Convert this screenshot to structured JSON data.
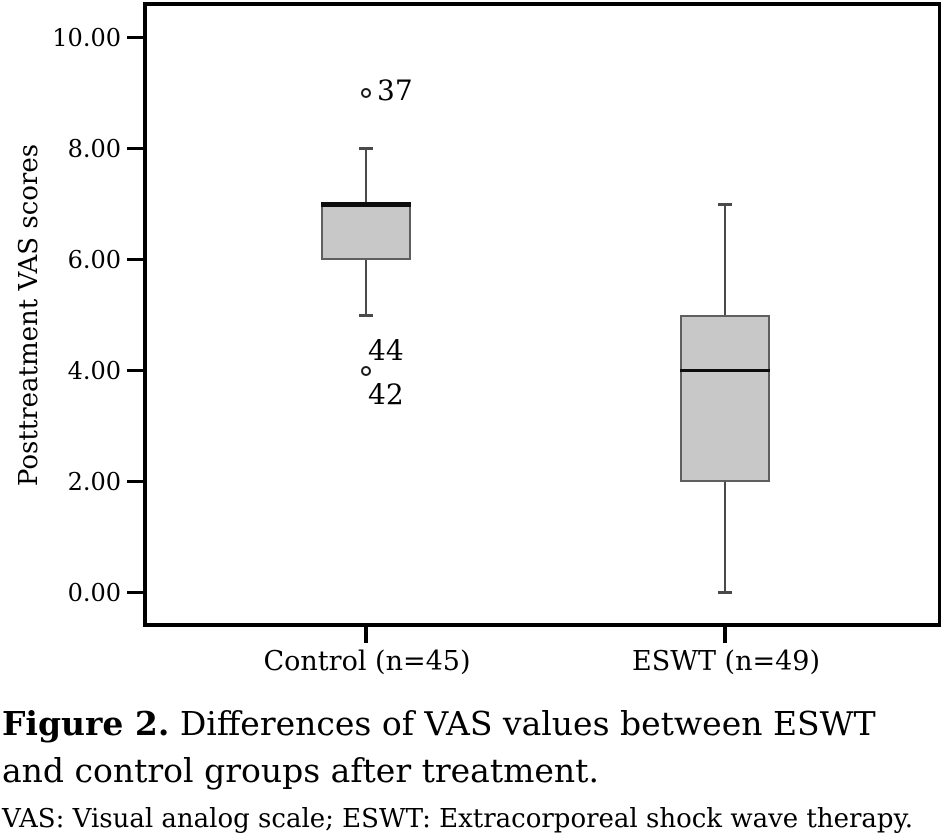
{
  "figure": {
    "caption_prefix": "Figure 2.",
    "caption_text": " Differences of VAS values between ESWT and control groups after treatment.",
    "footnote": "VAS: Visual analog scale; ESWT: Extracorporeal shock wave therapy."
  },
  "chart_data": {
    "type": "boxplot",
    "title": "",
    "xlabel": "",
    "ylabel": "Posttreatment VAS scores",
    "ylim": [
      0,
      10
    ],
    "ytick_labels": [
      "0.00",
      "2.00",
      "4.00",
      "6.00",
      "8.00",
      "10.00"
    ],
    "grid": false,
    "colors": {
      "box_fill": "#c8c8c8",
      "box_border": "#5f5f5f",
      "median": "#0d0d0d",
      "whisker": "#4a4a4a",
      "frame": "#000000"
    },
    "groups": [
      {
        "label": "Control (n=45)",
        "whisker_low": 5,
        "q1": 6,
        "median": 7,
        "q3": 7,
        "whisker_high": 8,
        "outliers": [
          {
            "value": 9,
            "labels": [
              {
                "text": "37",
                "pos": "right"
              }
            ]
          },
          {
            "value": 4,
            "labels": [
              {
                "text": "44",
                "pos": "above"
              },
              {
                "text": "42",
                "pos": "below"
              }
            ]
          }
        ]
      },
      {
        "label": "ESWT (n=49)",
        "whisker_low": 0,
        "q1": 2,
        "median": 4,
        "q3": 5,
        "whisker_high": 7,
        "outliers": []
      }
    ]
  }
}
